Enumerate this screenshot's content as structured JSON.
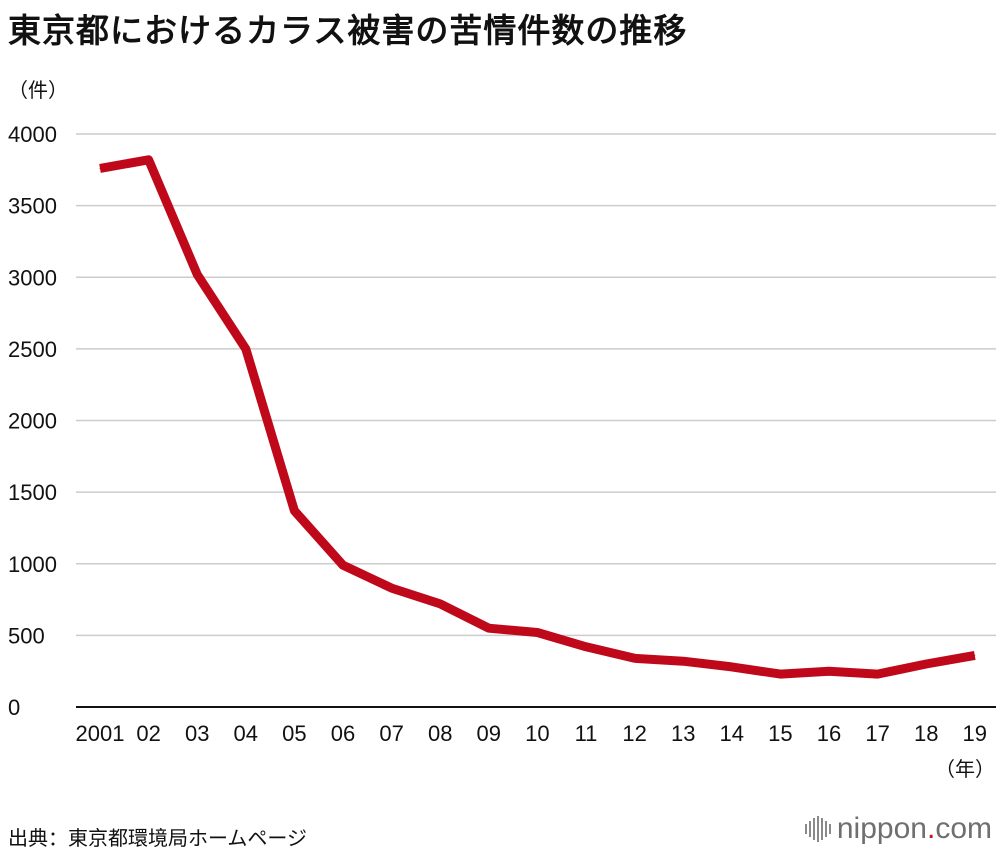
{
  "title": "東京都におけるカラス被害の苦情件数の推移",
  "source": "出典：東京都環境局ホームページ",
  "brand": {
    "name": "nippon",
    "dot": ".",
    "tld": "com",
    "icon": "nippon-logo-bars-icon"
  },
  "colors": {
    "line": "#c0081b",
    "grid": "#cccccc",
    "text": "#111111"
  },
  "chart_data": {
    "type": "line",
    "title": "東京都におけるカラス被害の苦情件数の推移",
    "ylabel": "（件）",
    "xlabel": "（年）",
    "ylim": [
      0,
      4000
    ],
    "yticks": [
      0,
      500,
      1000,
      1500,
      2000,
      2500,
      3000,
      3500,
      4000
    ],
    "grid": "horizontal",
    "legend": "none",
    "categories": [
      "2001",
      "02",
      "03",
      "04",
      "05",
      "06",
      "07",
      "08",
      "09",
      "10",
      "11",
      "12",
      "13",
      "14",
      "15",
      "16",
      "17",
      "18",
      "19"
    ],
    "series": [
      {
        "values": [
          3760,
          3820,
          3020,
          2500,
          1370,
          990,
          830,
          720,
          550,
          520,
          420,
          340,
          320,
          280,
          230,
          250,
          230,
          300,
          360
        ]
      }
    ]
  }
}
